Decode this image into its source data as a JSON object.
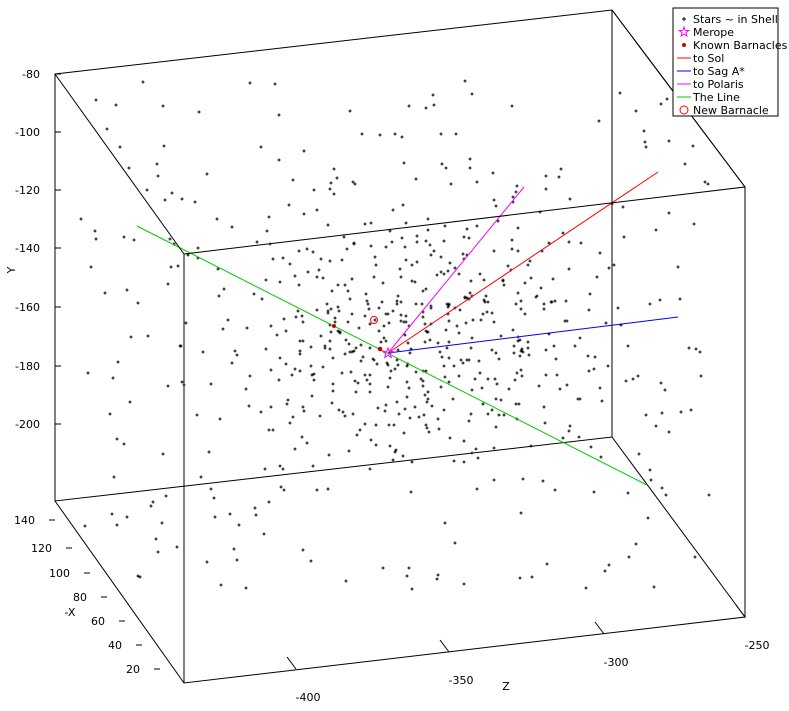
{
  "chart_data": {
    "type": "scatter",
    "projection": "3d",
    "title": "",
    "axes": {
      "y": {
        "label": "Y",
        "ticks": [
          "-80",
          "-100",
          "-120",
          "-140",
          "-160",
          "-180",
          "-200"
        ]
      },
      "x": {
        "label": "-X",
        "ticks": [
          "140",
          "120",
          "100",
          "80",
          "60",
          "40",
          "20"
        ]
      },
      "z": {
        "label": "Z",
        "ticks": [
          "-400",
          "-350",
          "-300",
          "-250"
        ]
      }
    },
    "legend": {
      "position": "top-right",
      "entries": [
        {
          "label": "Stars ~ in Shell",
          "color": "#000000",
          "marker": "plus"
        },
        {
          "label": "Merope",
          "color": "#ff00ff",
          "marker": "star"
        },
        {
          "label": "Known Barnacles",
          "color": "#cc0000",
          "marker": "dot"
        },
        {
          "label": "to Sol",
          "color": "#ff0000",
          "marker": "line"
        },
        {
          "label": "to Sag A*",
          "color": "#0000ff",
          "marker": "line"
        },
        {
          "label": "to Polaris",
          "color": "#ff00ff",
          "marker": "line"
        },
        {
          "label": "The Line",
          "color": "#00cc00",
          "marker": "line"
        },
        {
          "label": "New Barnacle",
          "color": "#ff0000",
          "marker": "circle"
        }
      ]
    },
    "grid": false,
    "star_count_approx": 700
  }
}
